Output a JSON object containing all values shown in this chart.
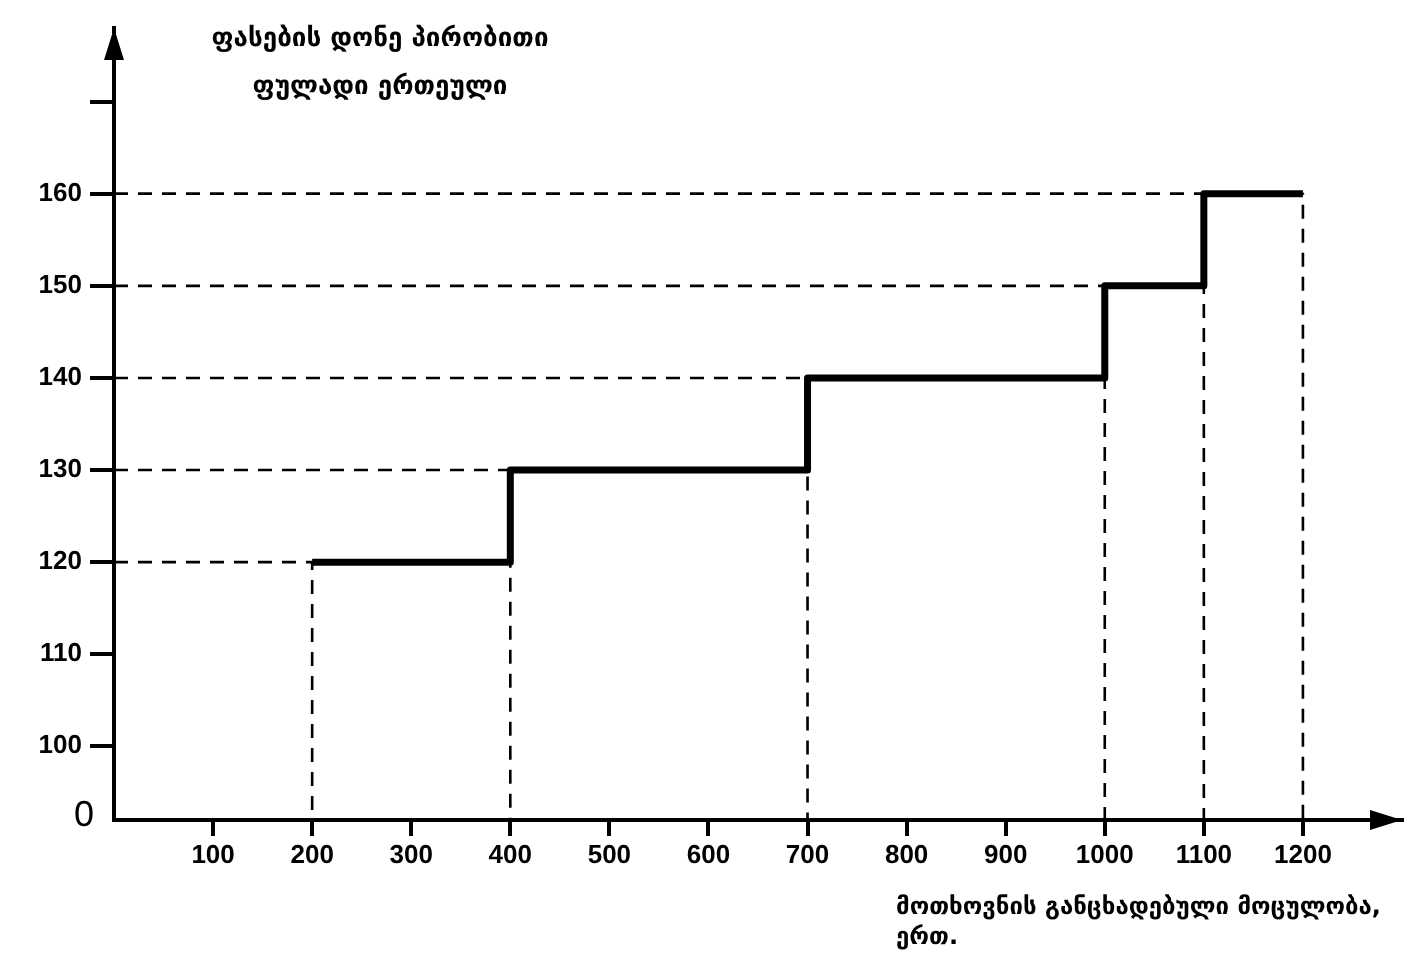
{
  "chart_data": {
    "type": "step",
    "ylabel": "ფასების დონე პირობითი ფულადი ერთეული",
    "xlabel": "მოთხოვნის განცხადებული მოცულობა, ერთ.",
    "annotations": [
      "0"
    ],
    "x": [
      200,
      400,
      700,
      1000,
      1100,
      1200
    ],
    "series": [
      {
        "color": "#000000",
        "values": [
          120,
          130,
          140,
          150,
          160,
          160
        ]
      },
      {
        "line_style": "dashed",
        "color": "#000000",
        "x": [
          0,
          200,
          200
        ],
        "values": [
          120,
          120,
          92
        ]
      },
      {
        "line_style": "dashed",
        "color": "#000000",
        "x": [
          0,
          400,
          400
        ],
        "values": [
          130,
          130,
          92
        ]
      },
      {
        "line_style": "dashed",
        "color": "#000000",
        "x": [
          0,
          700,
          700
        ],
        "values": [
          140,
          140,
          92
        ]
      },
      {
        "line_style": "dashed",
        "color": "#000000",
        "x": [
          0,
          1000,
          1000
        ],
        "values": [
          150,
          150,
          92
        ]
      },
      {
        "line_style": "dashed",
        "color": "#000000",
        "x": [
          0,
          1100,
          1100
        ],
        "values": [
          160,
          160,
          92
        ]
      },
      {
        "line_style": "dashed",
        "color": "#000000",
        "x": [
          0,
          1200,
          1200
        ],
        "values": [
          160,
          160,
          92
        ]
      }
    ],
    "xlim": [
      0,
      1300
    ],
    "xticks": [
      100,
      200,
      300,
      400,
      500,
      600,
      700,
      800,
      900,
      1000,
      1100,
      1200
    ],
    "ylim": [
      92,
      178
    ],
    "yticks": [
      100,
      110,
      120,
      130,
      140,
      150,
      160,
      {
        "value": 170,
        "label": null
      }
    ],
    "grid": false,
    "legend": false
  }
}
